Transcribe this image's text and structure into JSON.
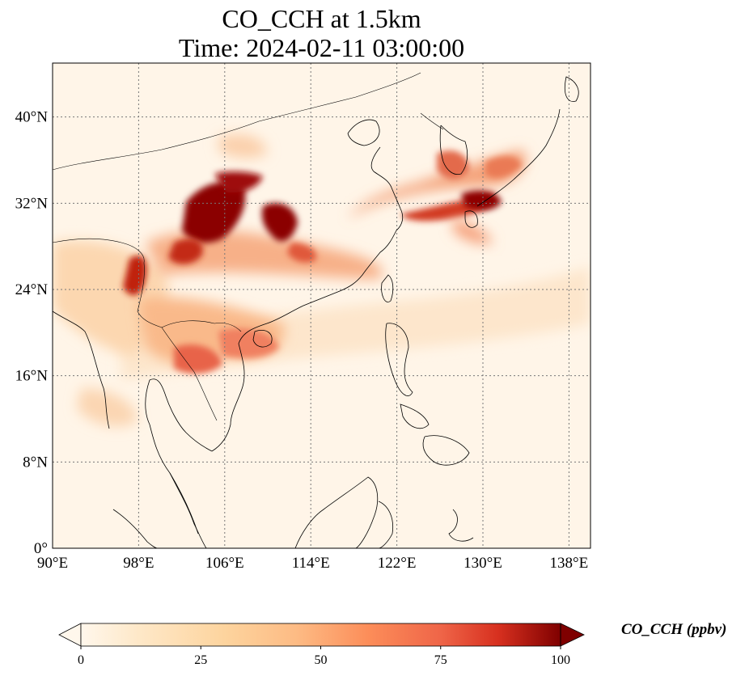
{
  "title_line1": "CO_CCH at 1.5km",
  "title_line2": "Time: 2024-02-11 03:00:00",
  "map": {
    "extent": {
      "lon_min": 90,
      "lon_max": 140,
      "lat_min": 0,
      "lat_max": 45
    },
    "gridlines": true,
    "lon_ticks": [
      90,
      98,
      106,
      114,
      122,
      130,
      138
    ],
    "lon_tick_labels": [
      "90°E",
      "98°E",
      "106°E",
      "114°E",
      "122°E",
      "130°E",
      "138°E"
    ],
    "lat_ticks": [
      0,
      8,
      16,
      24,
      32,
      40
    ],
    "lat_tick_labels": [
      "0°",
      "8°N",
      "16°N",
      "24°N",
      "32°N",
      "40°N"
    ],
    "field": "CO_CCH",
    "colormap": "OrRd",
    "colors": {
      "low": "#fff7ec",
      "mid": "#fdbb84",
      "high": "#7f0000",
      "gridline": "#777777",
      "coastline": "#000000"
    }
  },
  "colorbar": {
    "label": "CO_CCH (ppbv)",
    "min": 0,
    "max": 100,
    "extend": "both",
    "ticks": [
      0,
      25,
      50,
      75,
      100
    ],
    "tick_labels": [
      "0",
      "25",
      "50",
      "75",
      "100"
    ]
  }
}
